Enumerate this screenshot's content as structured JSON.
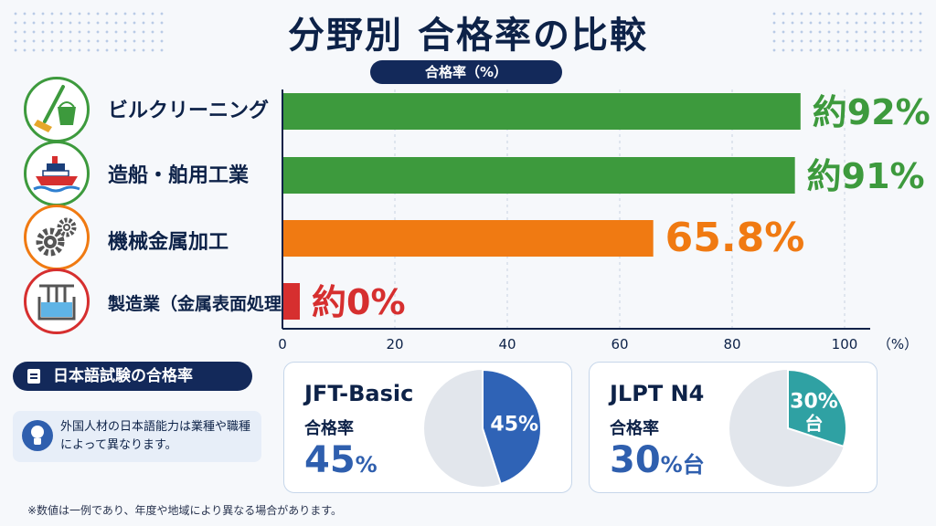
{
  "title": "分野別 合格率の比較",
  "chart_data": {
    "type": "bar",
    "orientation": "horizontal",
    "axis_title": "合格率（%）",
    "categories": [
      "ビルクリーニング",
      "造船・舶用工業",
      "機械金属加工",
      "製造業（金属表面処理）"
    ],
    "category_icons": [
      "cleaning-bucket-icon",
      "ship-icon",
      "gears-icon",
      "plating-tank-icon"
    ],
    "values": [
      92,
      91,
      65.8,
      0
    ],
    "value_labels": [
      "約92%",
      "約91%",
      "65.8%",
      "約0%"
    ],
    "colors": [
      "#3d9a3d",
      "#3d9a3d",
      "#f07a12",
      "#d62f2f"
    ],
    "xlim": [
      0,
      100
    ],
    "xticks": [
      "0",
      "20",
      "40",
      "60",
      "80",
      "100"
    ],
    "x_unit": "（%）",
    "grid": true
  },
  "japanese_test": {
    "heading": "日本語試験の合格率",
    "note": "外国人材の日本語能力は業種や職種によって異なります。",
    "cards": [
      {
        "name": "JFT-Basic",
        "label": "合格率",
        "value_text": "45",
        "unit": "%",
        "pie_label": "45%",
        "fraction": 0.45,
        "color": "#2f63b6"
      },
      {
        "name": "JLPT N4",
        "label": "合格率",
        "value_text": "30",
        "unit": "%台",
        "pie_label": "30%台",
        "fraction": 0.3,
        "color": "#2fa1a3"
      }
    ]
  },
  "footnote": "※数値は一例であり、年度や地域により異なる場合があります。"
}
